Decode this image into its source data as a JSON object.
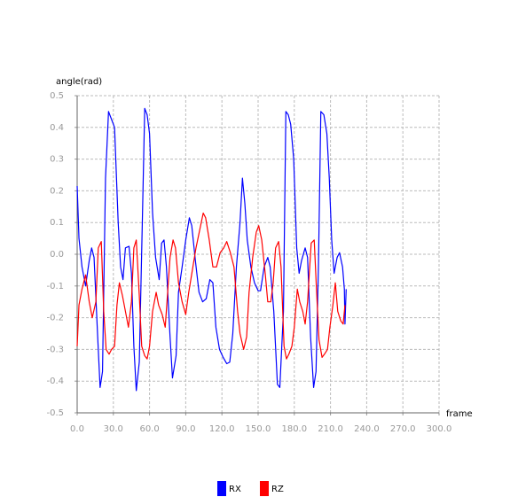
{
  "chart_data": {
    "type": "line",
    "ylabel": "angle(rad)",
    "xlabel": "frame",
    "xlim": [
      0,
      300
    ],
    "xticks": [
      {
        "value": 0,
        "label": "0.0"
      },
      {
        "value": 30,
        "label": "30.0"
      },
      {
        "value": 60,
        "label": "60.0"
      },
      {
        "value": 90,
        "label": "90.0"
      },
      {
        "value": 120,
        "label": "120.0"
      },
      {
        "value": 150,
        "label": "150.0"
      },
      {
        "value": 180,
        "label": "180.0"
      },
      {
        "value": 210,
        "label": "210.0"
      },
      {
        "value": 240,
        "label": "240.0"
      },
      {
        "value": 270,
        "label": "270.0"
      },
      {
        "value": 300,
        "label": "300.0"
      }
    ],
    "ylim": [
      -0.5,
      0.5
    ],
    "yticks": [
      -0.5,
      -0.4,
      -0.3,
      -0.2,
      -0.1,
      {
        "value": 0,
        "label": "0.0"
      },
      0.1,
      0.2,
      0.3,
      0.4,
      0.5
    ],
    "grid": true,
    "series": [
      {
        "name": "RX",
        "color": "#0000ff",
        "x": [
          0,
          1.5,
          4,
          7,
          10,
          12,
          14,
          17,
          19,
          21,
          23.5,
          26,
          29,
          31,
          34,
          36,
          38,
          40,
          43,
          45,
          47,
          49,
          51.5,
          54,
          56,
          58,
          60,
          62.5,
          65,
          68,
          70,
          72,
          74,
          77,
          79,
          82,
          84,
          87,
          90,
          93,
          95,
          98,
          101,
          104,
          107,
          110,
          112.5,
          115,
          118,
          121,
          124,
          126.5,
          129,
          132,
          135,
          137,
          139,
          141,
          144,
          147,
          150,
          152,
          155,
          158,
          160,
          163,
          166,
          168,
          171,
          173,
          175,
          177,
          179.5,
          182,
          184,
          186,
          189,
          191,
          193.5,
          196,
          198,
          200,
          202,
          204.5,
          207,
          209,
          211,
          213,
          215.5,
          217.5,
          220,
          221.5,
          222,
          223
        ],
        "values": [
          0.215,
          0.05,
          -0.04,
          -0.1,
          -0.02,
          0.02,
          -0.01,
          -0.26,
          -0.42,
          -0.37,
          0.24,
          0.45,
          0.42,
          0.4,
          0.1,
          -0.04,
          -0.08,
          0.02,
          0.025,
          -0.06,
          -0.29,
          -0.43,
          -0.34,
          0.1,
          0.46,
          0.44,
          0.38,
          0.13,
          -0.01,
          -0.08,
          0.035,
          0.045,
          -0.04,
          -0.26,
          -0.39,
          -0.32,
          -0.12,
          -0.04,
          0.045,
          0.115,
          0.09,
          -0.02,
          -0.12,
          -0.15,
          -0.14,
          -0.08,
          -0.09,
          -0.23,
          -0.3,
          -0.325,
          -0.345,
          -0.34,
          -0.25,
          -0.04,
          0.1,
          0.24,
          0.16,
          0.045,
          -0.04,
          -0.09,
          -0.115,
          -0.115,
          -0.04,
          -0.01,
          -0.04,
          -0.18,
          -0.41,
          -0.42,
          -0.18,
          0.45,
          0.44,
          0.41,
          0.3,
          0.02,
          -0.06,
          -0.02,
          0.02,
          -0.01,
          -0.26,
          -0.42,
          -0.37,
          -0.04,
          0.45,
          0.44,
          0.38,
          0.24,
          0.045,
          -0.06,
          -0.01,
          0.005,
          -0.04,
          -0.11,
          -0.22,
          -0.11
        ]
      },
      {
        "name": "RZ",
        "color": "#ff0000",
        "x": [
          0,
          1.5,
          4,
          7,
          10,
          12.5,
          15.5,
          17.5,
          20,
          22,
          24,
          26.5,
          28.5,
          31,
          33,
          35,
          37.5,
          40,
          42.5,
          45,
          47,
          49,
          51.5,
          53.5,
          56,
          58,
          60,
          62.5,
          65.5,
          67.5,
          70.5,
          73,
          75,
          77,
          79.5,
          81.5,
          84,
          87,
          90,
          92.5,
          95.5,
          98.5,
          101.5,
          104.5,
          106.5,
          109.5,
          112.5,
          115.5,
          118.5,
          121.5,
          124,
          127,
          130,
          133,
          135,
          138,
          140.5,
          142.5,
          145.5,
          148.5,
          150.5,
          153,
          156,
          158,
          160.5,
          162.5,
          164.5,
          167,
          169,
          171.5,
          173.5,
          175.5,
          178,
          180,
          182.5,
          184.5,
          187,
          189,
          191,
          194,
          196.5,
          198.5,
          200.5,
          203,
          205,
          207.5,
          209.5,
          212,
          214,
          216,
          218.5,
          220.5,
          222
        ],
        "values": [
          -0.29,
          -0.16,
          -0.11,
          -0.065,
          -0.15,
          -0.2,
          -0.15,
          0.02,
          0.04,
          -0.18,
          -0.3,
          -0.315,
          -0.3,
          -0.29,
          -0.16,
          -0.09,
          -0.13,
          -0.18,
          -0.23,
          -0.15,
          0.02,
          0.045,
          -0.13,
          -0.29,
          -0.32,
          -0.33,
          -0.29,
          -0.18,
          -0.12,
          -0.16,
          -0.19,
          -0.23,
          -0.12,
          -0.01,
          0.045,
          0.02,
          -0.09,
          -0.15,
          -0.19,
          -0.12,
          -0.05,
          0.02,
          0.075,
          0.13,
          0.115,
          0.045,
          -0.04,
          -0.04,
          0.005,
          0.02,
          0.04,
          0.005,
          -0.04,
          -0.18,
          -0.25,
          -0.3,
          -0.26,
          -0.12,
          -0.01,
          0.07,
          0.09,
          0.045,
          -0.065,
          -0.15,
          -0.15,
          -0.09,
          0.02,
          0.04,
          -0.04,
          -0.29,
          -0.33,
          -0.315,
          -0.29,
          -0.23,
          -0.11,
          -0.15,
          -0.18,
          -0.22,
          -0.15,
          0.035,
          0.045,
          -0.12,
          -0.27,
          -0.325,
          -0.315,
          -0.3,
          -0.23,
          -0.16,
          -0.09,
          -0.18,
          -0.21,
          -0.22,
          -0.16
        ]
      }
    ]
  }
}
